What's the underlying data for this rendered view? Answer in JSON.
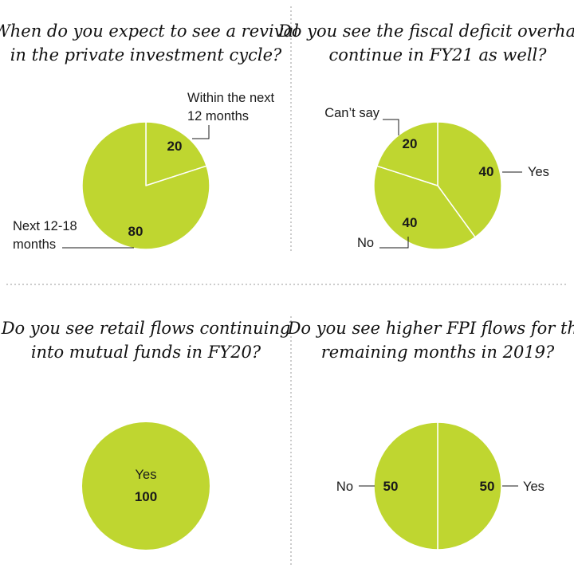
{
  "colors": {
    "slice": "#bfd630",
    "slice_border": "#ffffff",
    "text": "#1a1a1a",
    "divider": "#9a9a9a"
  },
  "chart_data": [
    {
      "type": "pie",
      "title_lines": [
        "When do you expect to see a revival",
        "in the private investment cycle?"
      ],
      "slices": [
        {
          "name_lines": [
            "Within the next",
            "12 months"
          ],
          "value": 20
        },
        {
          "name_lines": [
            "Next 12-18",
            "months"
          ],
          "value": 80
        }
      ]
    },
    {
      "type": "pie",
      "title_lines": [
        "Do you see the fiscal deficit overhang",
        "continue in FY21 as well?"
      ],
      "slices": [
        {
          "name_lines": [
            "Yes"
          ],
          "value": 40
        },
        {
          "name_lines": [
            "No"
          ],
          "value": 40
        },
        {
          "name_lines": [
            "Can’t say"
          ],
          "value": 20
        }
      ]
    },
    {
      "type": "pie",
      "title_lines": [
        "Do you see retail flows continuing",
        "into mutual funds in FY20?"
      ],
      "slices": [
        {
          "name_lines": [
            "Yes"
          ],
          "value": 100
        }
      ]
    },
    {
      "type": "pie",
      "title_lines": [
        "Do you see higher FPI flows for the",
        "remaining months in 2019?"
      ],
      "slices": [
        {
          "name_lines": [
            "Yes"
          ],
          "value": 50
        },
        {
          "name_lines": [
            "No"
          ],
          "value": 50
        }
      ]
    }
  ]
}
